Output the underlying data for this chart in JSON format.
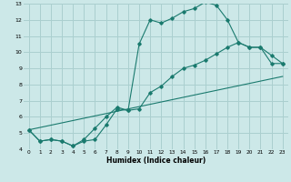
{
  "xlabel": "Humidex (Indice chaleur)",
  "bg_color": "#cce8e8",
  "grid_color": "#aacfcf",
  "line_color": "#1a7a6e",
  "line1_x": [
    0,
    1,
    2,
    3,
    4,
    5,
    6,
    7,
    8,
    9,
    10,
    11,
    12,
    13,
    14,
    15,
    16,
    17,
    18,
    19,
    20,
    21,
    22,
    23
  ],
  "line1_y": [
    5.2,
    4.5,
    4.6,
    4.5,
    4.2,
    4.5,
    4.6,
    5.5,
    6.5,
    6.4,
    10.5,
    12.0,
    11.8,
    12.1,
    12.5,
    12.7,
    13.1,
    12.9,
    12.0,
    10.6,
    10.3,
    10.3,
    9.3,
    9.3
  ],
  "line2_x": [
    0,
    1,
    2,
    3,
    4,
    5,
    6,
    7,
    8,
    9,
    10,
    11,
    12,
    13,
    14,
    15,
    16,
    17,
    18,
    19,
    20,
    21,
    22,
    23
  ],
  "line2_y": [
    5.2,
    4.5,
    4.6,
    4.5,
    4.2,
    4.6,
    5.3,
    6.0,
    6.6,
    6.4,
    6.5,
    7.5,
    7.9,
    8.5,
    9.0,
    9.2,
    9.5,
    9.9,
    10.3,
    10.6,
    10.3,
    10.3,
    9.8,
    9.3
  ],
  "line3_x": [
    0,
    23
  ],
  "line3_y": [
    5.2,
    8.5
  ],
  "xlim": [
    -0.5,
    23.5
  ],
  "ylim": [
    4,
    13
  ],
  "xticks": [
    0,
    1,
    2,
    3,
    4,
    5,
    6,
    7,
    8,
    9,
    10,
    11,
    12,
    13,
    14,
    15,
    16,
    17,
    18,
    19,
    20,
    21,
    22,
    23
  ],
  "yticks": [
    4,
    5,
    6,
    7,
    8,
    9,
    10,
    11,
    12,
    13
  ]
}
